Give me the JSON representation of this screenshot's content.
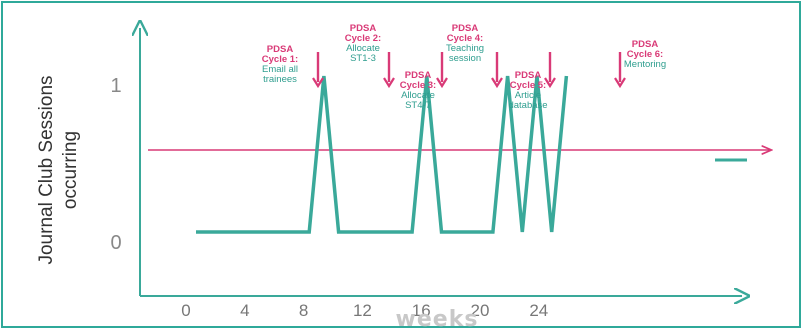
{
  "chart_data": {
    "type": "line",
    "ylabel": [
      "Journal Club Sessions",
      "occurring"
    ],
    "xlabel": "weeks",
    "x_ticks": [
      "0",
      "4",
      "8",
      "12",
      "16",
      "20",
      "24"
    ],
    "y_ticks": [
      "0",
      "1"
    ],
    "series": [
      {
        "color": "#3aa99a",
        "points": [
          [
            0,
            0
          ],
          [
            7.7,
            0
          ],
          [
            8.7,
            1
          ],
          [
            9.7,
            0
          ],
          [
            14.7,
            0
          ],
          [
            15.7,
            1
          ],
          [
            16.7,
            0
          ],
          [
            20.2,
            0
          ],
          [
            21.2,
            1
          ],
          [
            22.2,
            0
          ],
          [
            23.2,
            1
          ],
          [
            24.2,
            0
          ],
          [
            25.2,
            1
          ]
        ]
      }
    ],
    "reference_line": {
      "y": 0.6,
      "color": "#d93a77"
    },
    "legend_line_color": "#3aa99a",
    "annotations": [
      {
        "title": [
          "PDSA",
          "Cycle 1:"
        ],
        "text": [
          "Email all",
          "trainees"
        ]
      },
      {
        "title": [
          "PDSA",
          "Cycle 2:"
        ],
        "text": [
          "Allocate",
          "ST1-3"
        ]
      },
      {
        "title": [
          "PDSA",
          "Cycle 3:"
        ],
        "text": [
          "Allocate",
          "ST4-7"
        ]
      },
      {
        "title": [
          "PDSA",
          "Cycle 4:"
        ],
        "text": [
          "Teaching",
          "session"
        ]
      },
      {
        "title": [
          "PDSA",
          "Cycle 5:"
        ],
        "text": [
          "Article",
          "database"
        ]
      },
      {
        "title": [
          "PDSA",
          "Cycle 6:"
        ],
        "text": [
          "Mentoring"
        ]
      }
    ],
    "colors": {
      "line": "#3aa99a",
      "arrow": "#d93a77",
      "frame": "#2fa99a"
    }
  }
}
